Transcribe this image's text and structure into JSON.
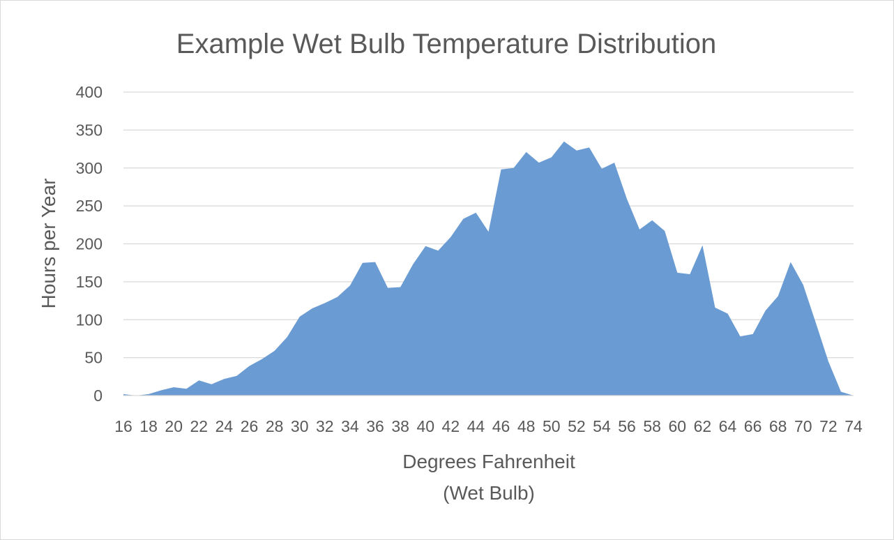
{
  "chart_data": {
    "type": "area",
    "title": "Example Wet Bulb Temperature Distribution",
    "xlabel": "Degrees Fahrenheit",
    "xlabel_line2": "(Wet Bulb)",
    "ylabel": "Hours per Year",
    "ylim": [
      0,
      400
    ],
    "yticks": [
      0,
      50,
      100,
      150,
      200,
      250,
      300,
      350,
      400
    ],
    "xticks": [
      16,
      18,
      20,
      22,
      24,
      26,
      28,
      30,
      32,
      34,
      36,
      38,
      40,
      42,
      44,
      46,
      48,
      50,
      52,
      54,
      56,
      58,
      60,
      62,
      64,
      66,
      68,
      70,
      72,
      74
    ],
    "grid": true,
    "legend": "none",
    "series": [
      {
        "color": "#6a9bd2",
        "x": [
          16,
          17,
          18,
          19,
          20,
          21,
          22,
          23,
          24,
          25,
          26,
          27,
          28,
          29,
          30,
          31,
          32,
          33,
          34,
          35,
          36,
          37,
          38,
          39,
          40,
          41,
          42,
          43,
          44,
          45,
          46,
          47,
          48,
          49,
          50,
          51,
          52,
          53,
          54,
          55,
          56,
          57,
          58,
          59,
          60,
          61,
          62,
          63,
          64,
          65,
          66,
          67,
          68,
          69,
          70,
          71,
          72,
          73,
          74
        ],
        "values": [
          2,
          0,
          2,
          7,
          11,
          9,
          20,
          15,
          22,
          26,
          39,
          48,
          59,
          77,
          104,
          115,
          122,
          130,
          145,
          175,
          176,
          142,
          143,
          173,
          197,
          191,
          209,
          233,
          241,
          216,
          298,
          300,
          321,
          307,
          314,
          335,
          323,
          327,
          299,
          307,
          259,
          219,
          231,
          217,
          162,
          160,
          198,
          116,
          108,
          78,
          81,
          112,
          131,
          176,
          146,
          96,
          45,
          5,
          0
        ]
      }
    ]
  }
}
